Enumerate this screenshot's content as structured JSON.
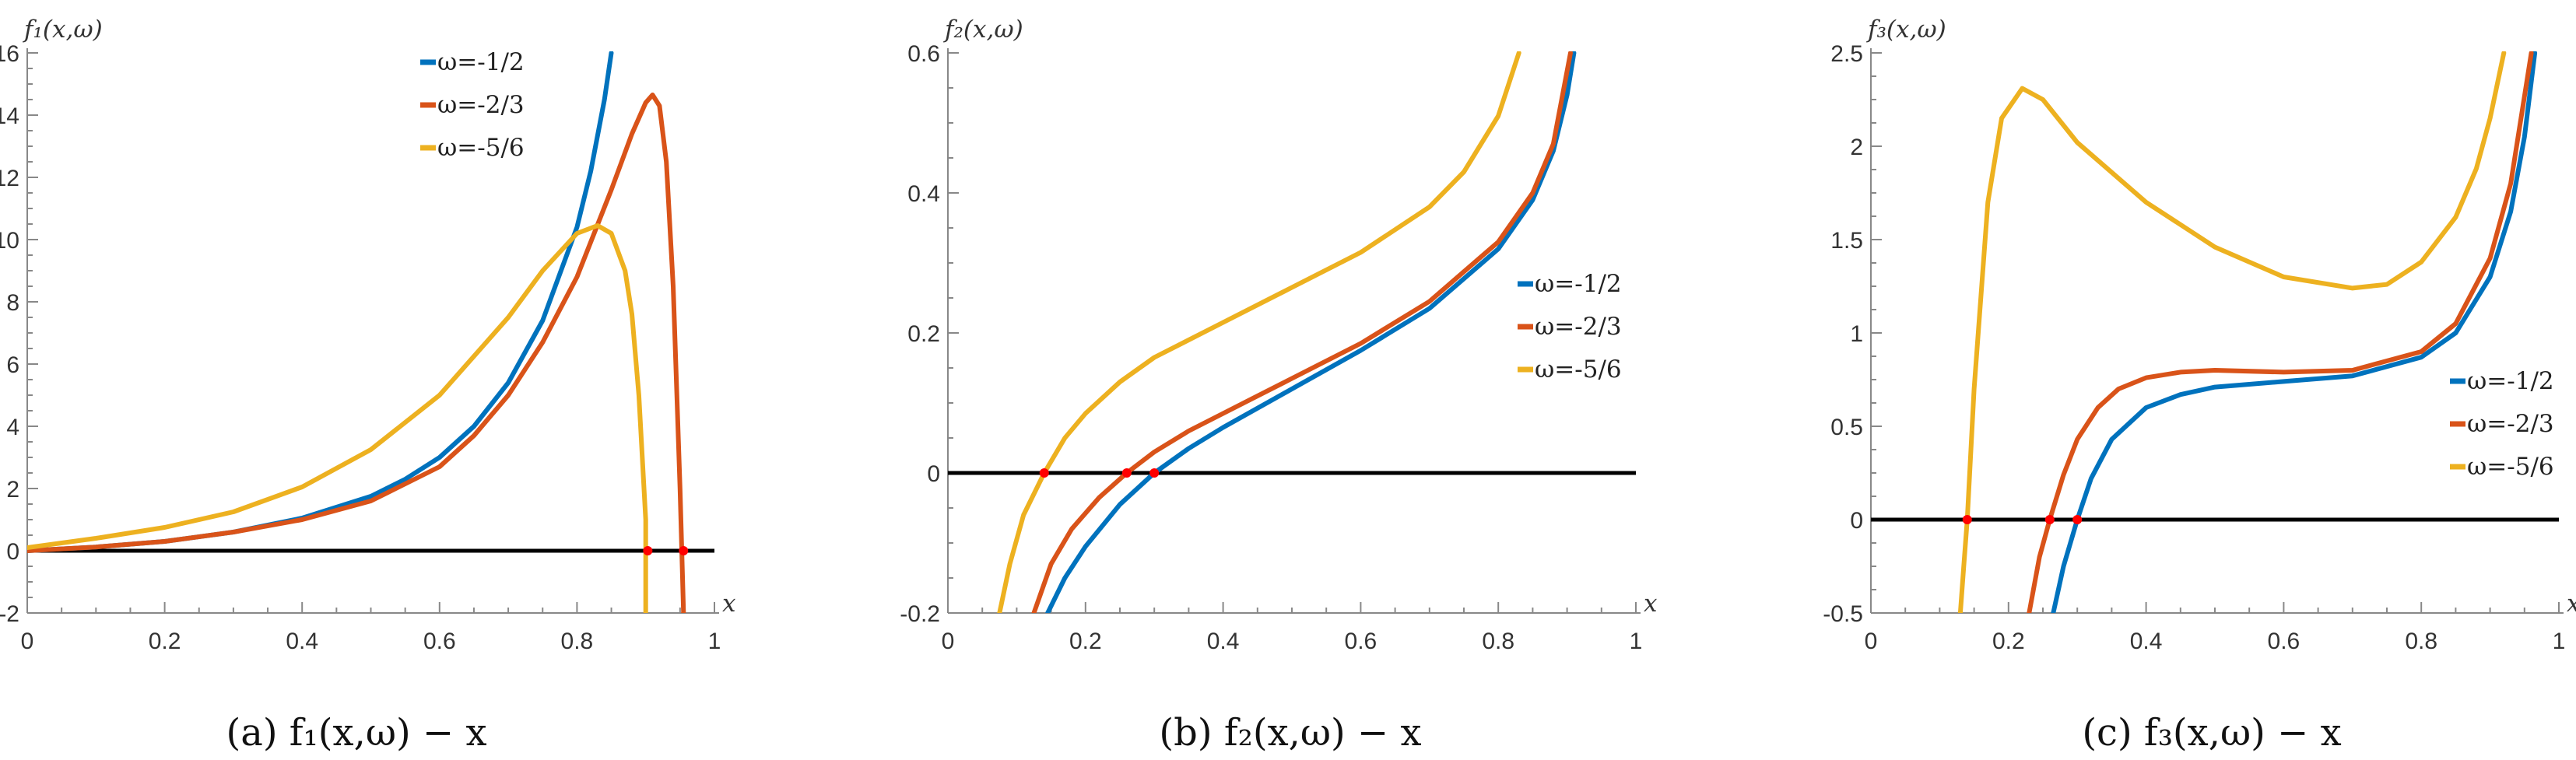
{
  "colors": {
    "blue": "#0072BD",
    "orange": "#D95319",
    "yellow": "#EDB120",
    "zero_line": "#000000",
    "roots": "#ff0000",
    "axis": "#888888"
  },
  "chart_data": [
    {
      "type": "line",
      "caption": "(a) f₁(x,ω) − x",
      "ylabel": "f₁(x,ω)",
      "xlabel": "x",
      "xlim": [
        0,
        1
      ],
      "ylim": [
        -2,
        16
      ],
      "xticks": [
        0,
        0.2,
        0.4,
        0.6,
        0.8,
        1
      ],
      "xtick_labels": [
        "0",
        "0.2",
        "0.4",
        "0.6",
        "0.8",
        "1"
      ],
      "yticks": [
        -2,
        0,
        2,
        4,
        6,
        8,
        10,
        12,
        14,
        16
      ],
      "ytick_labels": [
        "-2",
        "0",
        "2",
        "4",
        "6",
        "8",
        "10",
        "12",
        "14",
        "16"
      ],
      "legend_position": "top-center",
      "series": [
        {
          "name": "ω=-1/2",
          "color": "blue",
          "x": [
            0,
            0.1,
            0.2,
            0.3,
            0.4,
            0.5,
            0.55,
            0.6,
            0.65,
            0.7,
            0.75,
            0.8,
            0.82,
            0.84,
            0.85
          ],
          "y": [
            0,
            0.12,
            0.3,
            0.6,
            1.05,
            1.75,
            2.3,
            3.0,
            4.0,
            5.4,
            7.4,
            10.4,
            12.2,
            14.5,
            16
          ]
        },
        {
          "name": "ω=-2/3",
          "color": "orange",
          "x": [
            0,
            0.1,
            0.2,
            0.3,
            0.4,
            0.5,
            0.6,
            0.65,
            0.7,
            0.75,
            0.8,
            0.85,
            0.88,
            0.9,
            0.91,
            0.92,
            0.93,
            0.94,
            0.95,
            0.955
          ],
          "y": [
            0,
            0.12,
            0.3,
            0.6,
            1.0,
            1.6,
            2.7,
            3.7,
            5.0,
            6.7,
            8.8,
            11.6,
            13.4,
            14.4,
            14.65,
            14.3,
            12.5,
            8.5,
            2.0,
            -2
          ]
        },
        {
          "name": "ω=-5/6",
          "color": "yellow",
          "x": [
            0,
            0.1,
            0.2,
            0.3,
            0.4,
            0.5,
            0.6,
            0.7,
            0.75,
            0.8,
            0.83,
            0.85,
            0.87,
            0.88,
            0.89,
            0.9,
            0.9
          ],
          "y": [
            0.1,
            0.4,
            0.75,
            1.25,
            2.05,
            3.25,
            5.0,
            7.5,
            9.0,
            10.2,
            10.45,
            10.2,
            9.0,
            7.6,
            5.0,
            1.0,
            -2
          ]
        }
      ],
      "reference_line": {
        "y": 0,
        "x_range": [
          0,
          1
        ]
      },
      "roots": [
        0.903,
        0.955
      ]
    },
    {
      "type": "line",
      "caption": "(b) f₂(x,ω) − x",
      "ylabel": "f₂(x,ω)",
      "xlabel": "x",
      "xlim": [
        0,
        1
      ],
      "ylim": [
        -0.2,
        0.6
      ],
      "xticks": [
        0,
        0.2,
        0.4,
        0.6,
        0.8,
        1
      ],
      "xtick_labels": [
        "0",
        "0.2",
        "0.4",
        "0.6",
        "0.8",
        "1"
      ],
      "yticks": [
        -0.2,
        0,
        0.2,
        0.4,
        0.6
      ],
      "ytick_labels": [
        "-0.2",
        "0",
        "0.2",
        "0.4",
        "0.6"
      ],
      "legend_position": "center-right",
      "series": [
        {
          "name": "ω=-1/2",
          "color": "blue",
          "x": [
            0.145,
            0.17,
            0.2,
            0.25,
            0.3,
            0.35,
            0.4,
            0.5,
            0.6,
            0.7,
            0.8,
            0.85,
            0.88,
            0.9,
            0.91
          ],
          "y": [
            -0.2,
            -0.15,
            -0.105,
            -0.045,
            0.0,
            0.035,
            0.065,
            0.12,
            0.175,
            0.235,
            0.32,
            0.39,
            0.46,
            0.54,
            0.6
          ]
        },
        {
          "name": "ω=-2/3",
          "color": "orange",
          "x": [
            0.125,
            0.15,
            0.18,
            0.22,
            0.26,
            0.3,
            0.35,
            0.4,
            0.5,
            0.6,
            0.7,
            0.8,
            0.85,
            0.88,
            0.905
          ],
          "y": [
            -0.2,
            -0.13,
            -0.08,
            -0.035,
            0.0,
            0.03,
            0.06,
            0.085,
            0.135,
            0.185,
            0.245,
            0.33,
            0.4,
            0.47,
            0.6
          ]
        },
        {
          "name": "ω=-5/6",
          "color": "yellow",
          "x": [
            0.075,
            0.09,
            0.11,
            0.14,
            0.17,
            0.2,
            0.25,
            0.3,
            0.4,
            0.5,
            0.6,
            0.7,
            0.75,
            0.8,
            0.83
          ],
          "y": [
            -0.2,
            -0.13,
            -0.06,
            0.0,
            0.05,
            0.085,
            0.13,
            0.165,
            0.215,
            0.265,
            0.315,
            0.38,
            0.43,
            0.51,
            0.6
          ]
        }
      ],
      "reference_line": {
        "y": 0,
        "x_range": [
          0,
          1
        ]
      },
      "roots": [
        0.14,
        0.26,
        0.3
      ]
    },
    {
      "type": "line",
      "caption": "(c) f₃(x,ω) − x",
      "ylabel": "f₃(x,ω)",
      "xlabel": "x",
      "xlim": [
        0,
        1
      ],
      "ylim": [
        -0.5,
        2.5
      ],
      "xticks": [
        0,
        0.2,
        0.4,
        0.6,
        0.8,
        1
      ],
      "xtick_labels": [
        "0",
        "0.2",
        "0.4",
        "0.6",
        "0.8",
        "1"
      ],
      "yticks": [
        -0.5,
        0,
        0.5,
        1,
        1.5,
        2,
        2.5
      ],
      "ytick_labels": [
        "-0.5",
        "0",
        "0.5",
        "1",
        "1.5",
        "2",
        "2.5"
      ],
      "legend_position": "center-right",
      "series": [
        {
          "name": "ω=-1/2",
          "color": "blue",
          "x": [
            0.265,
            0.28,
            0.3,
            0.32,
            0.35,
            0.4,
            0.45,
            0.5,
            0.6,
            0.7,
            0.8,
            0.85,
            0.9,
            0.93,
            0.95,
            0.965
          ],
          "y": [
            -0.5,
            -0.25,
            0.0,
            0.22,
            0.43,
            0.6,
            0.67,
            0.71,
            0.74,
            0.77,
            0.87,
            1.0,
            1.3,
            1.65,
            2.05,
            2.5
          ]
        },
        {
          "name": "ω=-2/3",
          "color": "orange",
          "x": [
            0.23,
            0.245,
            0.26,
            0.28,
            0.3,
            0.33,
            0.36,
            0.4,
            0.45,
            0.5,
            0.6,
            0.7,
            0.8,
            0.85,
            0.9,
            0.93,
            0.96
          ],
          "y": [
            -0.5,
            -0.2,
            0.0,
            0.24,
            0.43,
            0.6,
            0.7,
            0.76,
            0.79,
            0.8,
            0.79,
            0.8,
            0.9,
            1.05,
            1.4,
            1.8,
            2.5
          ]
        },
        {
          "name": "ω=-5/6",
          "color": "yellow",
          "x": [
            0.13,
            0.135,
            0.14,
            0.15,
            0.17,
            0.19,
            0.22,
            0.25,
            0.3,
            0.4,
            0.5,
            0.6,
            0.7,
            0.75,
            0.8,
            0.85,
            0.88,
            0.9,
            0.92
          ],
          "y": [
            -0.5,
            -0.25,
            0.0,
            0.7,
            1.7,
            2.15,
            2.31,
            2.25,
            2.02,
            1.7,
            1.46,
            1.3,
            1.24,
            1.26,
            1.38,
            1.62,
            1.88,
            2.15,
            2.5
          ]
        }
      ],
      "reference_line": {
        "y": 0,
        "x_range": [
          0,
          1
        ]
      },
      "roots": [
        0.14,
        0.26,
        0.3
      ]
    }
  ]
}
